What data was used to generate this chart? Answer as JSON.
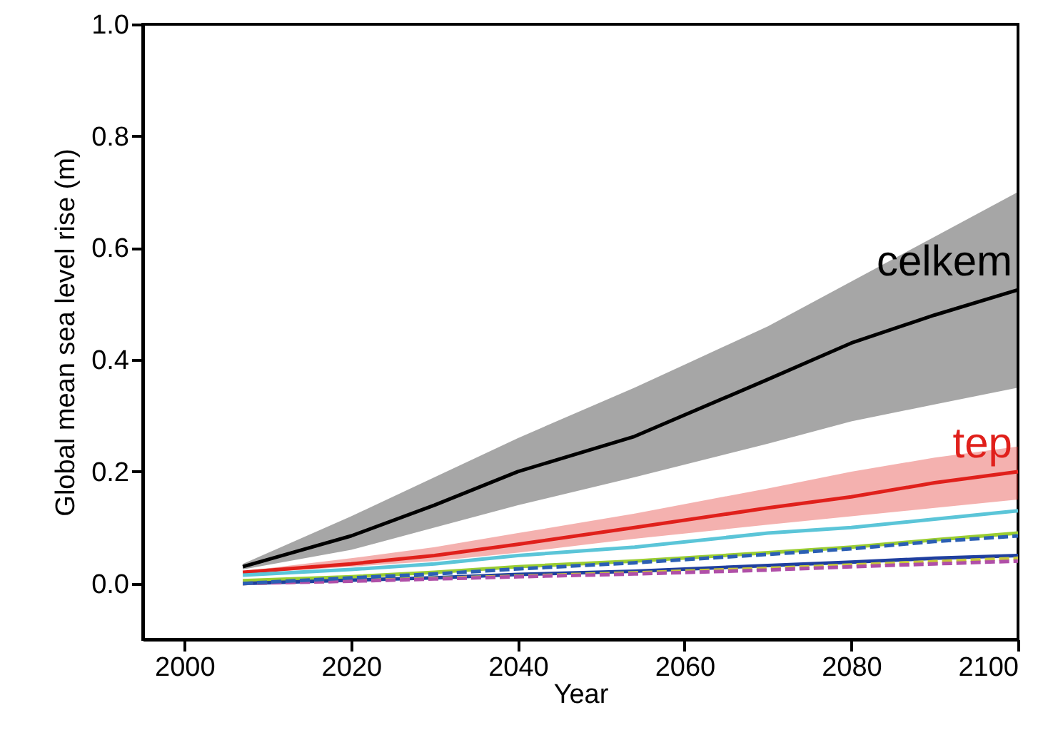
{
  "chart_data": {
    "type": "line",
    "xlabel": "Year",
    "ylabel": "Global mean sea level rise (m)",
    "x": [
      2007,
      2020,
      2030,
      2040,
      2054,
      2070,
      2080,
      2090,
      2100
    ],
    "xlim": [
      1995,
      2100
    ],
    "xticks": [
      2000,
      2020,
      2040,
      2060,
      2080,
      2100
    ],
    "ylim": [
      -0.1,
      1.0
    ],
    "yticks": [
      {
        "value": 0,
        "label": "0.0"
      },
      0.2,
      0.4,
      0.6,
      0.8,
      {
        "value": 1,
        "label": "1.0"
      }
    ],
    "grid": false,
    "series": [
      {
        "name": "celkem",
        "color": "#000000",
        "values": [
          0.03,
          0.085,
          0.14,
          0.2,
          0.263,
          0.365,
          0.43,
          0.48,
          0.525
        ],
        "lower": [
          0.025,
          0.06,
          0.1,
          0.14,
          0.19,
          0.25,
          0.29,
          0.32,
          0.35
        ],
        "upper": [
          0.035,
          0.12,
          0.19,
          0.26,
          0.35,
          0.46,
          0.54,
          0.62,
          0.7
        ]
      },
      {
        "name": "tep",
        "color": "#e0201b",
        "values": [
          0.02,
          0.035,
          0.05,
          0.07,
          0.1,
          0.135,
          0.155,
          0.18,
          0.2
        ],
        "lower": [
          0.018,
          0.03,
          0.04,
          0.055,
          0.08,
          0.105,
          0.12,
          0.135,
          0.15
        ],
        "upper": [
          0.022,
          0.045,
          0.065,
          0.09,
          0.125,
          0.17,
          0.2,
          0.225,
          0.245
        ]
      },
      {
        "color": "#5bc5d8",
        "values": [
          0.015,
          0.025,
          0.035,
          0.05,
          0.065,
          0.09,
          0.1,
          0.115,
          0.13
        ]
      },
      {
        "color": "#9acd32",
        "values": [
          0.005,
          0.012,
          0.02,
          0.03,
          0.04,
          0.055,
          0.065,
          0.078,
          0.09
        ]
      },
      {
        "color": "#1f3f9f",
        "values": [
          0,
          0.006,
          0.01,
          0.016,
          0.022,
          0.032,
          0.038,
          0.045,
          0.05
        ]
      },
      {
        "color": "#c8c83a",
        "line_style": "dashed",
        "values": [
          0,
          0.005,
          0.009,
          0.013,
          0.019,
          0.027,
          0.033,
          0.039,
          0.045
        ]
      },
      {
        "color": "#b04fa8",
        "line_style": "dashed",
        "values": [
          0,
          0.004,
          0.008,
          0.012,
          0.017,
          0.024,
          0.03,
          0.035,
          0.04
        ]
      },
      {
        "color": "#2b5fb4",
        "line_style": "dashed",
        "values": [
          0,
          0.01,
          0.017,
          0.026,
          0.037,
          0.052,
          0.062,
          0.075,
          0.085
        ]
      }
    ]
  }
}
